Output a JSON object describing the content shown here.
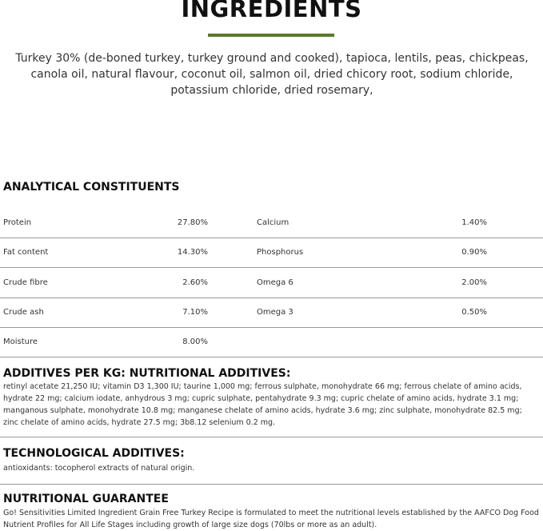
{
  "ingredients": {
    "title": "INGREDIENTS",
    "accent_color": "#5a7a2a",
    "text": "Turkey 30% (de-boned turkey, turkey ground and cooked),  tapioca, lentils, peas, chickpeas, canola oil, natural flavour, coconut oil, salmon oil, dried chicory root, sodium chloride, potassium chloride, dried rosemary,"
  },
  "analytical": {
    "title": "ANALYTICAL CONSTITUENTS",
    "rows": [
      {
        "name1": "Protein",
        "val1": "27.80%",
        "name2": "Calcium",
        "val2": "1.40%"
      },
      {
        "name1": "Fat content",
        "val1": "14.30%",
        "name2": "Phosphorus",
        "val2": "0.90%"
      },
      {
        "name1": "Crude fibre",
        "val1": "2.60%",
        "name2": "Omega 6",
        "val2": "2.00%"
      },
      {
        "name1": "Crude ash",
        "val1": "7.10%",
        "name2": "Omega 3",
        "val2": "0.50%"
      },
      {
        "name1": "Moisture",
        "val1": "8.00%",
        "name2": "",
        "val2": ""
      }
    ]
  },
  "additives": {
    "title": "ADDITIVES PER KG: NUTRITIONAL ADDITIVES:",
    "text": "retinyl acetate 21,250 IU; vitamin D3 1,300 IU; taurine 1,000 mg; ferrous sulphate, monohydrate 66 mg; ferrous chelate of amino acids, hydrate 22 mg; calcium iodate, anhydrous 3 mg; cupric sulphate, pentahydrate 9.3 mg; cupric chelate of amino acids, hydrate 3.1 mg; manganous sulphate, monohydrate 10.8 mg; manganese chelate of amino acids, hydrate 3.6 mg; zinc sulphate, monohydrate 82.5 mg; zinc chelate of amino acids, hydrate 27.5 mg; 3b8.12 selenium 0.2 mg."
  },
  "technological": {
    "title": "TECHNOLOGICAL ADDITIVES:",
    "text": "antioxidants: tocopherol extracts of natural origin."
  },
  "guarantee": {
    "title": "NUTRITIONAL GUARANTEE",
    "text": "Go! Sensitivities Limited Ingredient Grain Free Turkey Recipe is formulated to meet the nutritional levels established by the AAFCO Dog Food Nutrient Profiles for All Life Stages including growth of large size dogs (70lbs or more as an adult)."
  }
}
